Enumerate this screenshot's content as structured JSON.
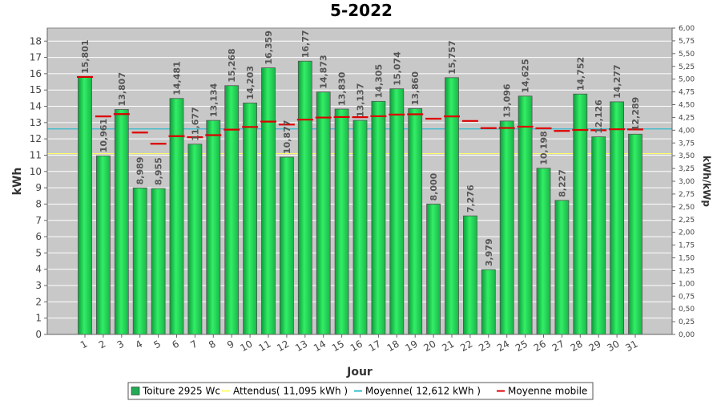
{
  "chart_data": {
    "type": "bar",
    "title": "5-2022",
    "xlabel": "Jour",
    "ylabel": "kWh",
    "ylabel_right": "kWh/kWp",
    "ylim": [
      0,
      18.8
    ],
    "ylim_right": [
      0,
      6.0
    ],
    "y_ticks": [
      0,
      1,
      2,
      3,
      4,
      5,
      6,
      7,
      8,
      9,
      10,
      11,
      12,
      13,
      14,
      15,
      16,
      17,
      18
    ],
    "y_ticks_right": [
      "0,00",
      "0,25",
      "0,50",
      "0,75",
      "1,00",
      "1,25",
      "1,50",
      "1,75",
      "2,00",
      "2,25",
      "2,50",
      "2,75",
      "3,00",
      "3,25",
      "3,50",
      "3,75",
      "4,00",
      "4,25",
      "4,50",
      "4,75",
      "5,00",
      "5,25",
      "5,50",
      "5,75",
      "6,00"
    ],
    "categories": [
      "1",
      "2",
      "3",
      "4",
      "5",
      "6",
      "7",
      "8",
      "9",
      "10",
      "11",
      "12",
      "13",
      "14",
      "15",
      "16",
      "17",
      "18",
      "19",
      "20",
      "21",
      "22",
      "23",
      "24",
      "25",
      "26",
      "27",
      "28",
      "29",
      "30",
      "31"
    ],
    "series": [
      {
        "name": "Toiture 2925 Wc",
        "values": [
          15.801,
          10.961,
          13.807,
          8.989,
          8.955,
          14.481,
          11.677,
          13.134,
          15.268,
          14.203,
          16.359,
          10.877,
          16.77,
          14.873,
          13.83,
          13.137,
          14.305,
          15.074,
          13.86,
          8.0,
          15.757,
          7.276,
          3.979,
          13.096,
          14.625,
          10.198,
          8.227,
          14.752,
          12.126,
          14.277,
          12.289
        ],
        "labels": [
          "15,801",
          "10,961",
          "13,807",
          "8,989",
          "8,955",
          "14,481",
          "11,677",
          "13,134",
          "15,268",
          "14,203",
          "16,359",
          "10,877",
          "16,77",
          "14,873",
          "13,830",
          "13,137",
          "14,305",
          "15,074",
          "13,860",
          "8,000",
          "15,757",
          "7,276",
          "3,979",
          "13,096",
          "14,625",
          "10,198",
          "8,227",
          "14,752",
          "12,126",
          "14,277",
          "12,289"
        ],
        "color": "#22cc55"
      },
      {
        "name": "Moyenne mobile",
        "values": [
          15.8,
          13.38,
          13.52,
          12.39,
          11.7,
          12.17,
          12.1,
          12.23,
          12.57,
          12.73,
          13.06,
          12.88,
          13.18,
          13.31,
          13.34,
          13.33,
          13.39,
          13.49,
          13.51,
          13.24,
          13.38,
          13.1,
          12.66,
          12.67,
          12.75,
          12.65,
          12.49,
          12.55,
          12.53,
          12.59,
          12.58
        ],
        "color": "#dd0000"
      }
    ],
    "reference_lines": [
      {
        "name": "Attendus",
        "value": 11.095,
        "color": "#ffff66"
      },
      {
        "name": "Moyenne",
        "value": 12.612,
        "color": "#33bbcc"
      }
    ],
    "legend": {
      "position": "bottom",
      "items": [
        {
          "label": "Toiture 2925 Wc",
          "color": "#22aa55",
          "kind": "square"
        },
        {
          "label": "Attendus( 11,095 kWh )",
          "color": "#ffff66",
          "kind": "line"
        },
        {
          "label": "Moyenne( 12,612 kWh )",
          "color": "#33bbcc",
          "kind": "line"
        },
        {
          "label": "Moyenne mobile",
          "color": "#dd0000",
          "kind": "line"
        }
      ]
    },
    "grid": true
  }
}
